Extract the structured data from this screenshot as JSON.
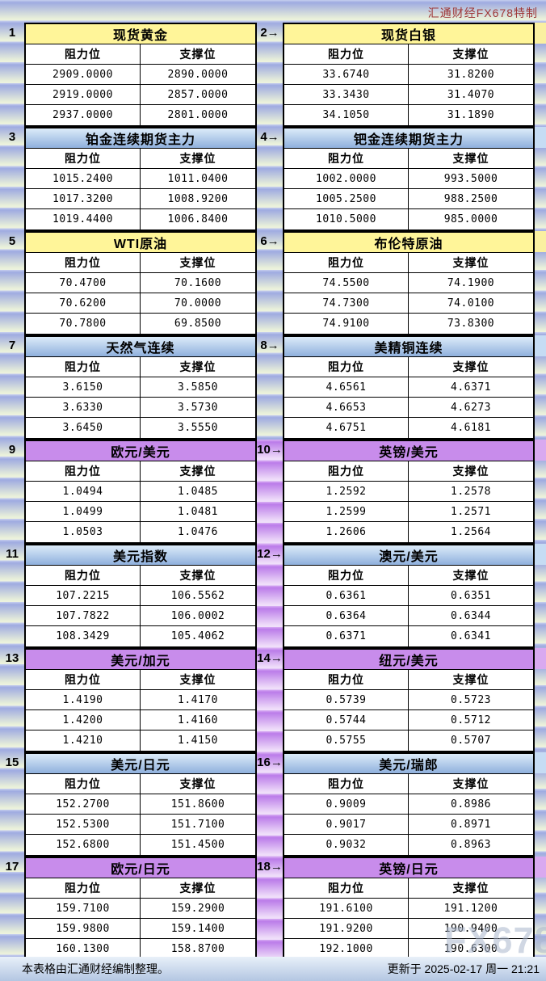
{
  "header": {
    "brand": "汇通财经FX678特制"
  },
  "labels": {
    "resistance": "阻力位",
    "support": "支撑位"
  },
  "blocks": [
    {
      "badge": "1",
      "title": "现货黄金",
      "style": "yellow",
      "resistance": [
        "2909.0000",
        "2919.0000",
        "2937.0000"
      ],
      "support": [
        "2890.0000",
        "2857.0000",
        "2801.0000"
      ]
    },
    {
      "badge": "2→",
      "title": "现货白银",
      "style": "yellow",
      "resistance": [
        "33.6740",
        "33.3430",
        "34.1050"
      ],
      "support": [
        "31.8200",
        "31.4070",
        "31.1890"
      ]
    },
    {
      "badge": "3",
      "title": "铂金连续期货主力",
      "style": "blue",
      "resistance": [
        "1015.2400",
        "1017.3200",
        "1019.4400"
      ],
      "support": [
        "1011.0400",
        "1008.9200",
        "1006.8400"
      ]
    },
    {
      "badge": "4→",
      "title": "钯金连续期货主力",
      "style": "blue",
      "resistance": [
        "1002.0000",
        "1005.2500",
        "1010.5000"
      ],
      "support": [
        "993.5000",
        "988.2500",
        "985.0000"
      ]
    },
    {
      "badge": "5",
      "title": "WTI原油",
      "style": "yellow",
      "resistance": [
        "70.4700",
        "70.6200",
        "70.7800"
      ],
      "support": [
        "70.1600",
        "70.0000",
        "69.8500"
      ]
    },
    {
      "badge": "6→",
      "title": "布伦特原油",
      "style": "yellow",
      "resistance": [
        "74.5500",
        "74.7300",
        "74.9100"
      ],
      "support": [
        "74.1900",
        "74.0100",
        "73.8300"
      ]
    },
    {
      "badge": "7",
      "title": "天然气连续",
      "style": "blue",
      "resistance": [
        "3.6150",
        "3.6330",
        "3.6450"
      ],
      "support": [
        "3.5850",
        "3.5730",
        "3.5550"
      ]
    },
    {
      "badge": "8→",
      "title": "美精铜连续",
      "style": "blue",
      "resistance": [
        "4.6561",
        "4.6653",
        "4.6751"
      ],
      "support": [
        "4.6371",
        "4.6273",
        "4.6181"
      ]
    },
    {
      "badge": "9",
      "title": "欧元/美元",
      "style": "purple",
      "resistance": [
        "1.0494",
        "1.0499",
        "1.0503"
      ],
      "support": [
        "1.0485",
        "1.0481",
        "1.0476"
      ]
    },
    {
      "badge": "10→",
      "title": "英镑/美元",
      "style": "purple",
      "resistance": [
        "1.2592",
        "1.2599",
        "1.2606"
      ],
      "support": [
        "1.2578",
        "1.2571",
        "1.2564"
      ]
    },
    {
      "badge": "11",
      "title": "美元指数",
      "style": "blue",
      "resistance": [
        "107.2215",
        "107.7822",
        "108.3429"
      ],
      "support": [
        "106.5562",
        "106.0002",
        "105.4062"
      ]
    },
    {
      "badge": "12→",
      "title": "澳元/美元",
      "style": "blue",
      "resistance": [
        "0.6361",
        "0.6364",
        "0.6371"
      ],
      "support": [
        "0.6351",
        "0.6344",
        "0.6341"
      ]
    },
    {
      "badge": "13",
      "title": "美元/加元",
      "style": "purple",
      "resistance": [
        "1.4190",
        "1.4200",
        "1.4210"
      ],
      "support": [
        "1.4170",
        "1.4160",
        "1.4150"
      ]
    },
    {
      "badge": "14→",
      "title": "纽元/美元",
      "style": "purple",
      "resistance": [
        "0.5739",
        "0.5744",
        "0.5755"
      ],
      "support": [
        "0.5723",
        "0.5712",
        "0.5707"
      ]
    },
    {
      "badge": "15",
      "title": "美元/日元",
      "style": "blue",
      "resistance": [
        "152.2700",
        "152.5300",
        "152.6800"
      ],
      "support": [
        "151.8600",
        "151.7100",
        "151.4500"
      ]
    },
    {
      "badge": "16→",
      "title": "美元/瑞郎",
      "style": "blue",
      "resistance": [
        "0.9009",
        "0.9017",
        "0.9032"
      ],
      "support": [
        "0.8986",
        "0.8971",
        "0.8963"
      ]
    },
    {
      "badge": "17",
      "title": "欧元/日元",
      "style": "purple",
      "resistance": [
        "159.7100",
        "159.9800",
        "160.1300"
      ],
      "support": [
        "159.2900",
        "159.1400",
        "158.8700"
      ]
    },
    {
      "badge": "18→",
      "title": "英镑/日元",
      "style": "purple",
      "resistance": [
        "191.6100",
        "191.9200",
        "192.1000"
      ],
      "support": [
        "191.1200",
        "190.9400",
        "190.6300"
      ]
    }
  ],
  "footer": {
    "note": "本表格由汇通财经编制整理。",
    "updated": "更新于 2025-02-17 周一 21:21"
  },
  "watermark": "FX678",
  "colors": {
    "header_yellow": "#fff599",
    "header_blue_top": "#dcebf9",
    "header_blue_bottom": "#8fb0dd",
    "header_purple": "#c88ceb",
    "band_blue": "#9fabe1",
    "band_pale": "#e9f0da",
    "band_purple": "#bb7ce9",
    "band_purple_pale": "#eedbf9",
    "brand_red": "#9e3636",
    "tint_yellow": "#faf0a0",
    "tint_blue": "#c6dcf4",
    "tint_purple": "#d9a9f0"
  }
}
